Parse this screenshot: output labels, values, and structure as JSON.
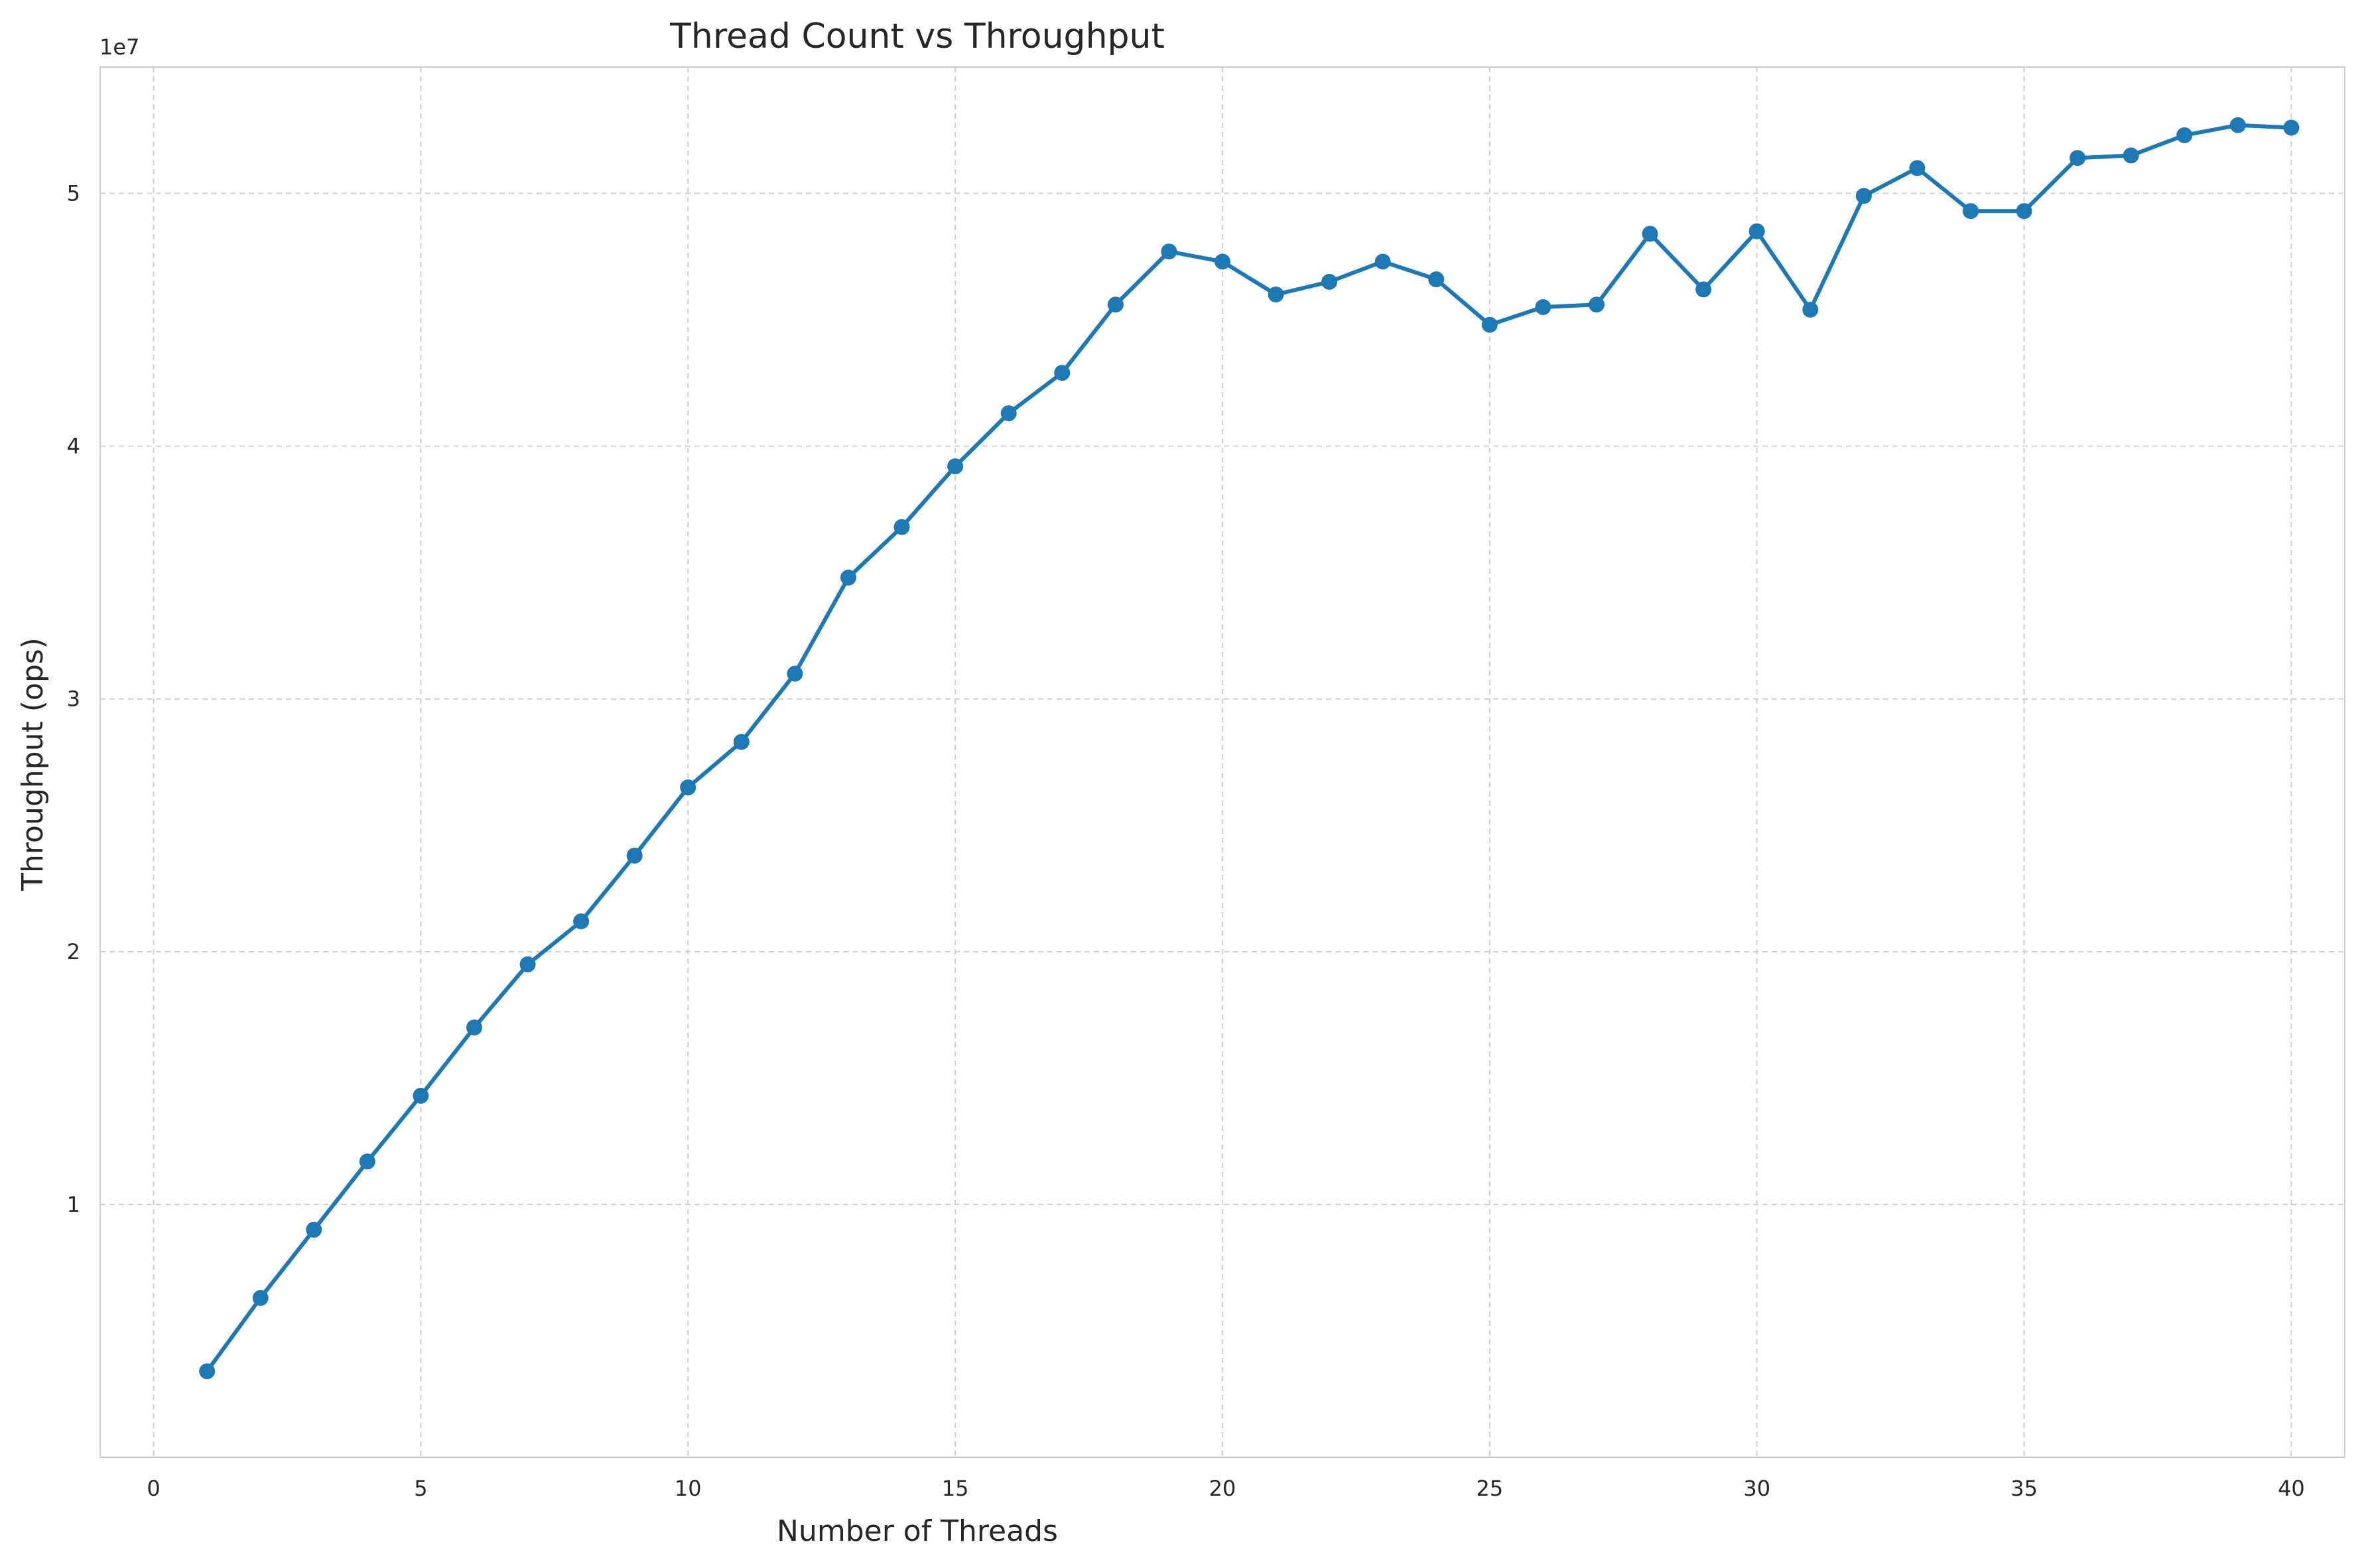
{
  "chart_data": {
    "type": "line",
    "title": "Thread Count vs Throughput",
    "xlabel": "Number of Threads",
    "ylabel": "Throughput (ops)",
    "y_offset_label": "1e7",
    "xlim": [
      -1,
      41
    ],
    "ylim": [
      0,
      5.5
    ],
    "x_ticks": [
      0,
      5,
      10,
      15,
      20,
      25,
      30,
      35,
      40
    ],
    "x_tick_labels": [
      "0",
      "5",
      "10",
      "15",
      "20",
      "25",
      "30",
      "35",
      "40"
    ],
    "y_ticks": [
      1,
      2,
      3,
      4,
      5
    ],
    "y_tick_labels": [
      "1",
      "2",
      "3",
      "4",
      "5"
    ],
    "grid": true,
    "color": "#1f77b4",
    "series": [
      {
        "x": [
          1,
          2,
          3,
          4,
          5,
          6,
          7,
          8,
          9,
          10,
          11,
          12,
          13,
          14,
          15,
          16,
          17,
          18,
          19,
          20,
          21,
          22,
          23,
          24,
          25,
          26,
          27,
          28,
          29,
          30,
          31,
          32,
          33,
          34,
          35,
          36,
          37,
          38,
          39,
          40
        ],
        "values": [
          0.34,
          0.63,
          0.9,
          1.17,
          1.43,
          1.7,
          1.95,
          2.12,
          2.38,
          2.65,
          2.83,
          3.1,
          3.48,
          3.68,
          3.92,
          4.13,
          4.29,
          4.56,
          4.77,
          4.73,
          4.6,
          4.65,
          4.73,
          4.66,
          4.48,
          4.55,
          4.56,
          4.84,
          4.62,
          4.85,
          4.54,
          4.99,
          5.1,
          4.93,
          4.93,
          5.14,
          5.15,
          5.23,
          5.27,
          5.26
        ]
      }
    ]
  }
}
